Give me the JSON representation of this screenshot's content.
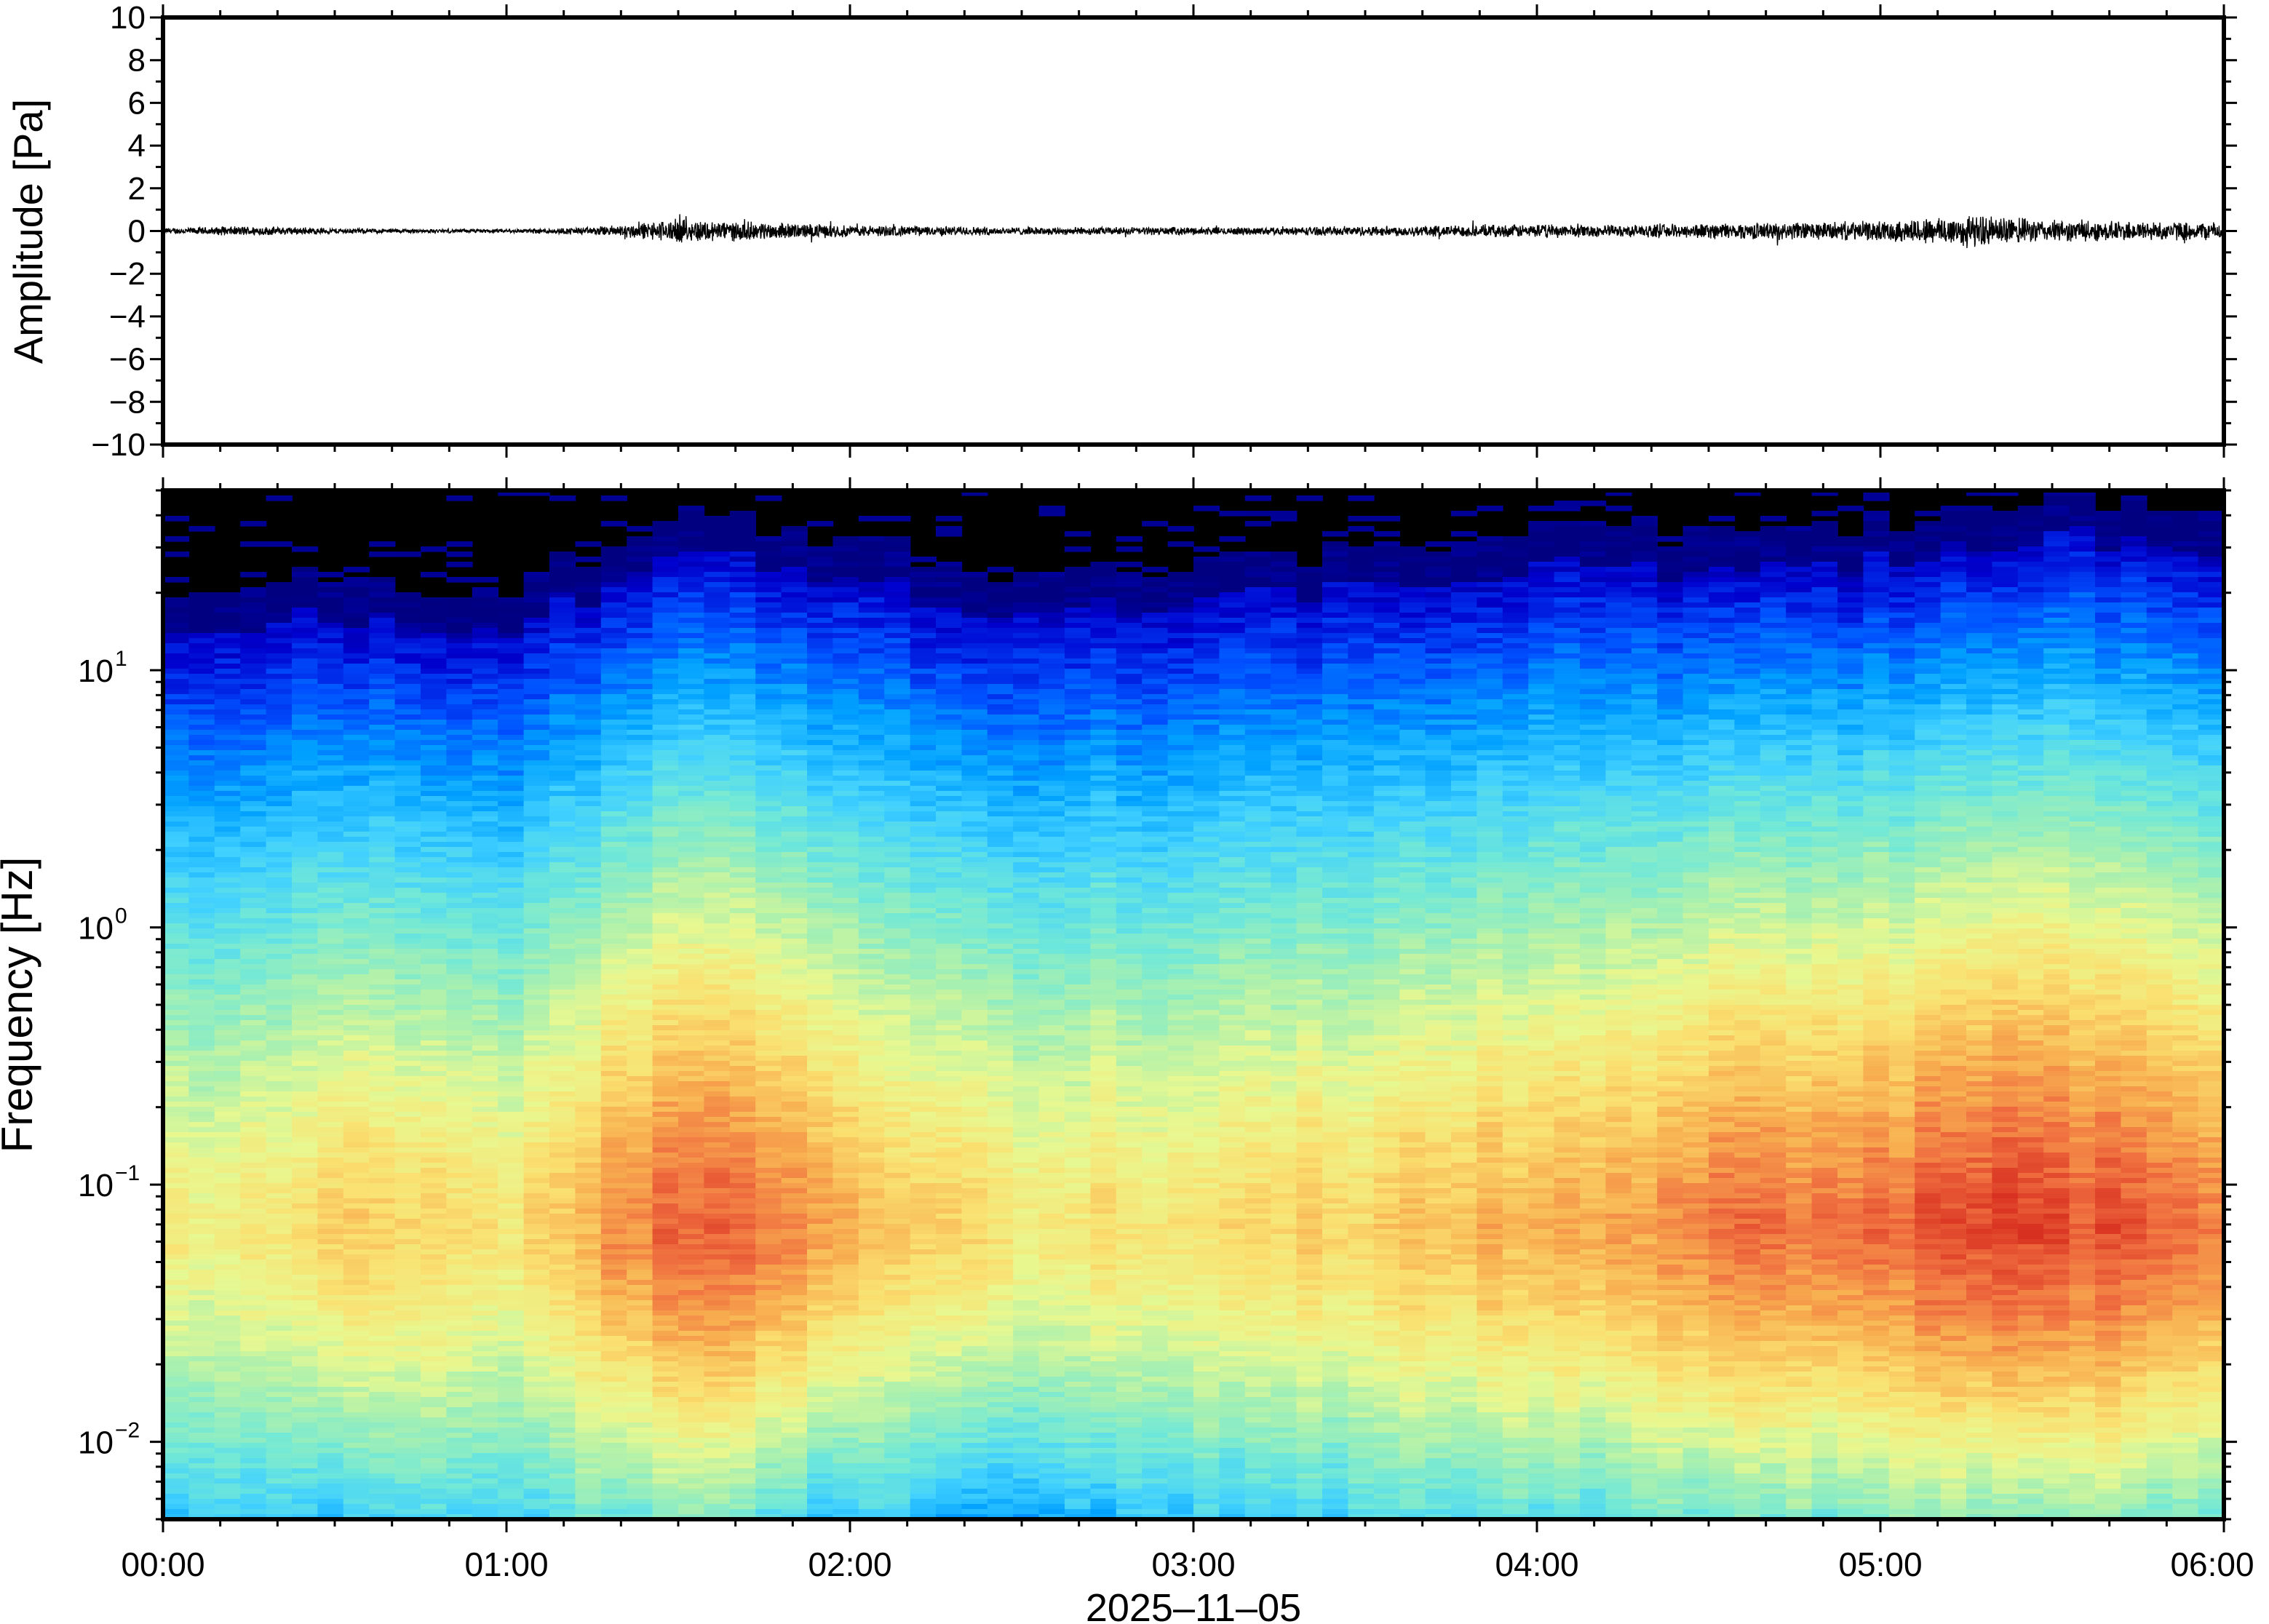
{
  "chart_data": [
    {
      "type": "line",
      "title": "",
      "ylabel": "Amplitude [Pa]",
      "xlabel": "",
      "ylim": [
        -10,
        10
      ],
      "yticks": [
        10,
        8,
        6,
        4,
        2,
        0,
        -2,
        -4,
        -6,
        -8,
        -10
      ],
      "ytick_labels": [
        "10",
        "8",
        "6",
        "4",
        "2",
        "0",
        "−2",
        "−4",
        "−6",
        "−8",
        "−10"
      ],
      "xlim_hours": [
        0,
        6
      ],
      "series": [
        {
          "color": "#000000",
          "envelope_time_hours": [
            0,
            0.25,
            0.5,
            0.75,
            1.0,
            1.25,
            1.5,
            1.75,
            2.0,
            2.25,
            2.5,
            2.75,
            3.0,
            3.25,
            3.5,
            3.75,
            4.0,
            4.25,
            4.5,
            4.75,
            5.0,
            5.25,
            5.5,
            5.75,
            6.0
          ],
          "envelope_amplitude_pa": [
            0.15,
            0.25,
            0.15,
            0.1,
            0.1,
            0.2,
            0.6,
            0.45,
            0.3,
            0.25,
            0.2,
            0.2,
            0.2,
            0.2,
            0.25,
            0.3,
            0.35,
            0.3,
            0.4,
            0.45,
            0.5,
            0.85,
            0.55,
            0.5,
            0.45
          ]
        }
      ]
    },
    {
      "type": "heatmap",
      "title": "",
      "ylabel": "Frequency [Hz]",
      "xlabel": "2025–11–05",
      "y_scale": "log",
      "ylim": [
        0.005,
        50
      ],
      "yticks": [
        {
          "value": 10,
          "base": "10",
          "exp": "1"
        },
        {
          "value": 1,
          "base": "10",
          "exp": "0"
        },
        {
          "value": 0.1,
          "base": "10",
          "exp": "−1"
        },
        {
          "value": 0.01,
          "base": "10",
          "exp": "−2"
        }
      ],
      "xticks": [
        "00:00",
        "01:00",
        "02:00",
        "03:00",
        "04:00",
        "05:00",
        "06:00"
      ],
      "xlim_hours": [
        0,
        6
      ],
      "colormap": [
        "#000080",
        "#0000cd",
        "#0050ff",
        "#00a0ff",
        "#40d0ff",
        "#70e8d8",
        "#a8f0b0",
        "#e8f890",
        "#fae070",
        "#f8b050",
        "#f07040",
        "#d83020"
      ],
      "level_range": [
        0,
        1
      ],
      "time_hours": [
        0,
        0.5,
        1.0,
        1.5,
        2.0,
        2.5,
        3.0,
        3.5,
        4.0,
        4.5,
        5.0,
        5.5,
        6.0
      ],
      "top_cutoff_hz": [
        14,
        17,
        14,
        27,
        24,
        15,
        20,
        20,
        25,
        23,
        26,
        34,
        30
      ],
      "peak_level": [
        0.66,
        0.74,
        0.72,
        0.94,
        0.82,
        0.7,
        0.72,
        0.76,
        0.82,
        0.88,
        0.92,
        0.97,
        0.88
      ],
      "peak_frequency_hz": 0.07,
      "low_frequency_level": [
        0.36,
        0.34,
        0.38,
        0.5,
        0.34,
        0.3,
        0.35,
        0.38,
        0.42,
        0.45,
        0.5,
        0.52,
        0.48
      ]
    }
  ]
}
